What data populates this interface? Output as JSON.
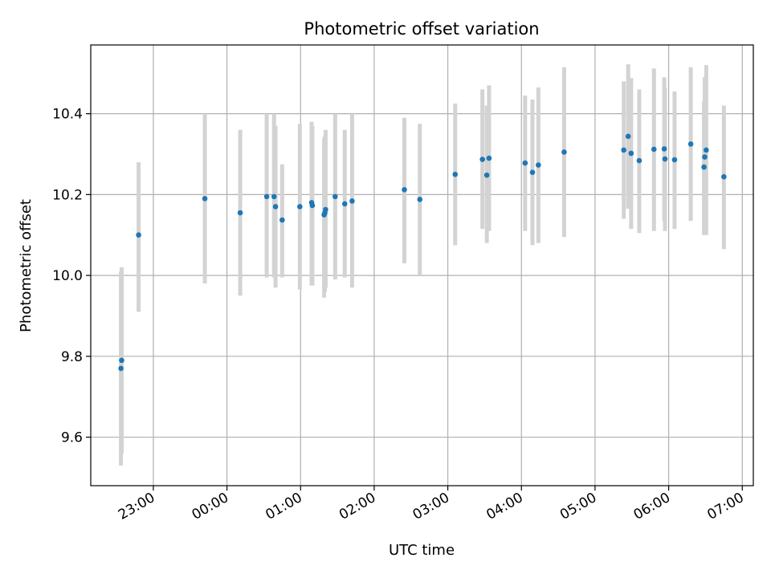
{
  "chart_data": {
    "type": "scatter",
    "title": "Photometric offset variation",
    "xlabel": "UTC time",
    "ylabel": "Photometric offset",
    "x_unit": "hours relative to 00:00 UTC",
    "xlim": [
      -1.85,
      7.15
    ],
    "ylim": [
      9.48,
      10.57
    ],
    "grid": true,
    "x_ticks": [
      {
        "value": -1,
        "label": "23:00"
      },
      {
        "value": 0,
        "label": "00:00"
      },
      {
        "value": 1,
        "label": "01:00"
      },
      {
        "value": 2,
        "label": "02:00"
      },
      {
        "value": 3,
        "label": "03:00"
      },
      {
        "value": 4,
        "label": "04:00"
      },
      {
        "value": 5,
        "label": "05:00"
      },
      {
        "value": 6,
        "label": "06:00"
      },
      {
        "value": 7,
        "label": "07:00"
      }
    ],
    "y_ticks": [
      {
        "value": 9.6,
        "label": "9.6"
      },
      {
        "value": 9.8,
        "label": "9.8"
      },
      {
        "value": 10.0,
        "label": "10.0"
      },
      {
        "value": 10.2,
        "label": "10.2"
      },
      {
        "value": 10.4,
        "label": "10.4"
      }
    ],
    "series": [
      {
        "name": "offset",
        "marker_color": "#1f77b4",
        "errorbar_color": "#d3d3d3",
        "points": [
          {
            "x": -1.44,
            "y": 9.77,
            "lo": 9.53,
            "hi": 10.01
          },
          {
            "x": -1.43,
            "y": 9.79,
            "lo": 9.56,
            "hi": 10.02
          },
          {
            "x": -1.2,
            "y": 10.1,
            "lo": 9.91,
            "hi": 10.28
          },
          {
            "x": -0.3,
            "y": 10.19,
            "lo": 9.98,
            "hi": 10.4
          },
          {
            "x": 0.18,
            "y": 10.155,
            "lo": 9.95,
            "hi": 10.36
          },
          {
            "x": 0.54,
            "y": 10.195,
            "lo": 9.995,
            "hi": 10.4
          },
          {
            "x": 0.64,
            "y": 10.195,
            "lo": 9.995,
            "hi": 10.4
          },
          {
            "x": 0.66,
            "y": 10.17,
            "lo": 9.97,
            "hi": 10.37
          },
          {
            "x": 0.75,
            "y": 10.137,
            "lo": 9.995,
            "hi": 10.275
          },
          {
            "x": 0.99,
            "y": 10.17,
            "lo": 9.965,
            "hi": 10.375
          },
          {
            "x": 1.15,
            "y": 10.18,
            "lo": 9.975,
            "hi": 10.38
          },
          {
            "x": 1.16,
            "y": 10.173,
            "lo": 9.975,
            "hi": 10.37
          },
          {
            "x": 1.32,
            "y": 10.15,
            "lo": 9.945,
            "hi": 10.34
          },
          {
            "x": 1.33,
            "y": 10.155,
            "lo": 9.96,
            "hi": 10.345
          },
          {
            "x": 1.34,
            "y": 10.163,
            "lo": 9.97,
            "hi": 10.36
          },
          {
            "x": 1.47,
            "y": 10.195,
            "lo": 9.99,
            "hi": 10.4
          },
          {
            "x": 1.6,
            "y": 10.177,
            "lo": 9.995,
            "hi": 10.36
          },
          {
            "x": 1.7,
            "y": 10.184,
            "lo": 9.97,
            "hi": 10.4
          },
          {
            "x": 2.41,
            "y": 10.212,
            "lo": 10.03,
            "hi": 10.39
          },
          {
            "x": 2.62,
            "y": 10.188,
            "lo": 10.0,
            "hi": 10.375
          },
          {
            "x": 3.1,
            "y": 10.25,
            "lo": 10.075,
            "hi": 10.425
          },
          {
            "x": 3.47,
            "y": 10.287,
            "lo": 10.115,
            "hi": 10.46
          },
          {
            "x": 3.53,
            "y": 10.248,
            "lo": 10.08,
            "hi": 10.42
          },
          {
            "x": 3.56,
            "y": 10.29,
            "lo": 10.11,
            "hi": 10.47
          },
          {
            "x": 4.05,
            "y": 10.278,
            "lo": 10.11,
            "hi": 10.445
          },
          {
            "x": 4.15,
            "y": 10.255,
            "lo": 10.075,
            "hi": 10.435
          },
          {
            "x": 4.23,
            "y": 10.273,
            "lo": 10.08,
            "hi": 10.465
          },
          {
            "x": 4.58,
            "y": 10.305,
            "lo": 10.095,
            "hi": 10.515
          },
          {
            "x": 5.39,
            "y": 10.31,
            "lo": 10.14,
            "hi": 10.48
          },
          {
            "x": 5.45,
            "y": 10.344,
            "lo": 10.165,
            "hi": 10.522
          },
          {
            "x": 5.49,
            "y": 10.302,
            "lo": 10.115,
            "hi": 10.488
          },
          {
            "x": 5.6,
            "y": 10.284,
            "lo": 10.105,
            "hi": 10.46
          },
          {
            "x": 5.8,
            "y": 10.312,
            "lo": 10.11,
            "hi": 10.512
          },
          {
            "x": 5.94,
            "y": 10.313,
            "lo": 10.135,
            "hi": 10.49
          },
          {
            "x": 5.95,
            "y": 10.288,
            "lo": 10.11,
            "hi": 10.465
          },
          {
            "x": 6.08,
            "y": 10.286,
            "lo": 10.115,
            "hi": 10.455
          },
          {
            "x": 6.3,
            "y": 10.325,
            "lo": 10.135,
            "hi": 10.515
          },
          {
            "x": 6.48,
            "y": 10.268,
            "lo": 10.1,
            "hi": 10.43
          },
          {
            "x": 6.49,
            "y": 10.293,
            "lo": 10.105,
            "hi": 10.49
          },
          {
            "x": 6.51,
            "y": 10.31,
            "lo": 10.1,
            "hi": 10.52
          },
          {
            "x": 6.75,
            "y": 10.244,
            "lo": 10.065,
            "hi": 10.42
          }
        ]
      }
    ]
  }
}
